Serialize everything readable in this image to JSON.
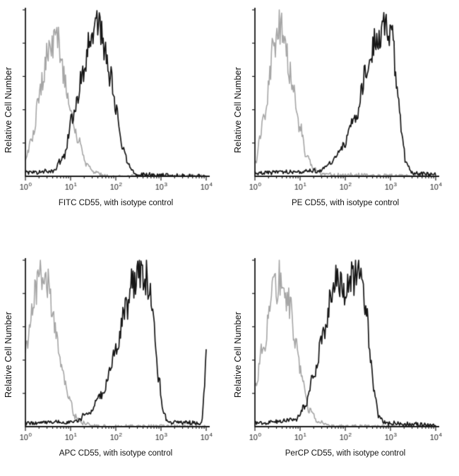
{
  "figure": {
    "background": "#ffffff",
    "axis_color": "#1a1a1a",
    "tick_label_base": "10",
    "x_tick_exponents": [
      0,
      1,
      2,
      3,
      4
    ],
    "points_format": "[log10(x), relative_cell_count 0..1]"
  },
  "chart_data": [
    {
      "type": "line",
      "subtype": "flow-cytometry-histogram",
      "xlabel": "FITC CD55, with isotype control",
      "ylabel": "Relative Cell Number",
      "x_scale": "log10",
      "xlim": [
        1,
        10000
      ],
      "grid": false,
      "legend": "none",
      "series": [
        {
          "name": "isotype control",
          "color": "#a6a6a6",
          "line_width": 1.6,
          "noise": 0.14,
          "seed": 101,
          "points": [
            [
              0,
              0.1
            ],
            [
              0.15,
              0.25
            ],
            [
              0.35,
              0.55
            ],
            [
              0.55,
              0.8
            ],
            [
              0.7,
              0.84
            ],
            [
              0.85,
              0.62
            ],
            [
              1.0,
              0.4
            ],
            [
              1.15,
              0.22
            ],
            [
              1.35,
              0.08
            ],
            [
              1.55,
              0.02
            ],
            [
              1.8,
              0.0
            ],
            [
              4,
              0.0
            ]
          ]
        },
        {
          "name": "FITC CD55",
          "color": "#161616",
          "line_width": 1.7,
          "noise": 0.13,
          "seed": 102,
          "points": [
            [
              0,
              0.02
            ],
            [
              0.6,
              0.03
            ],
            [
              0.85,
              0.12
            ],
            [
              1.05,
              0.35
            ],
            [
              1.25,
              0.6
            ],
            [
              1.45,
              0.85
            ],
            [
              1.6,
              0.93
            ],
            [
              1.75,
              0.8
            ],
            [
              1.9,
              0.6
            ],
            [
              2.0,
              0.4
            ],
            [
              2.15,
              0.18
            ],
            [
              2.3,
              0.06
            ],
            [
              2.45,
              0.01
            ],
            [
              4,
              0.0
            ]
          ]
        }
      ]
    },
    {
      "type": "line",
      "subtype": "flow-cytometry-histogram",
      "xlabel": "PE CD55, with isotype control",
      "ylabel": "Relative Cell Number",
      "x_scale": "log10",
      "xlim": [
        1,
        10000
      ],
      "grid": false,
      "legend": "none",
      "series": [
        {
          "name": "isotype control",
          "color": "#a6a6a6",
          "line_width": 1.6,
          "noise": 0.14,
          "seed": 201,
          "points": [
            [
              0,
              0.08
            ],
            [
              0.2,
              0.35
            ],
            [
              0.4,
              0.75
            ],
            [
              0.55,
              0.92
            ],
            [
              0.7,
              0.75
            ],
            [
              0.85,
              0.5
            ],
            [
              1.0,
              0.28
            ],
            [
              1.15,
              0.12
            ],
            [
              1.3,
              0.04
            ],
            [
              1.5,
              0.01
            ],
            [
              4,
              0.0
            ]
          ]
        },
        {
          "name": "PE CD55",
          "color": "#161616",
          "line_width": 1.7,
          "noise": 0.13,
          "seed": 202,
          "points": [
            [
              0,
              0.02
            ],
            [
              1.4,
              0.03
            ],
            [
              1.7,
              0.08
            ],
            [
              1.95,
              0.18
            ],
            [
              2.2,
              0.35
            ],
            [
              2.45,
              0.6
            ],
            [
              2.7,
              0.85
            ],
            [
              2.9,
              0.92
            ],
            [
              3.05,
              0.8
            ],
            [
              3.15,
              0.55
            ],
            [
              3.25,
              0.25
            ],
            [
              3.35,
              0.07
            ],
            [
              3.5,
              0.02
            ],
            [
              4,
              0.01
            ]
          ]
        }
      ]
    },
    {
      "type": "line",
      "subtype": "flow-cytometry-histogram",
      "xlabel": "APC CD55, with isotype control",
      "ylabel": "Relative Cell Number",
      "x_scale": "log10",
      "xlim": [
        1,
        10000
      ],
      "grid": false,
      "legend": "none",
      "series": [
        {
          "name": "isotype control",
          "color": "#a6a6a6",
          "line_width": 1.6,
          "noise": 0.14,
          "seed": 301,
          "points": [
            [
              0,
              0.45
            ],
            [
              0.15,
              0.75
            ],
            [
              0.35,
              0.95
            ],
            [
              0.5,
              0.88
            ],
            [
              0.65,
              0.62
            ],
            [
              0.8,
              0.38
            ],
            [
              0.95,
              0.18
            ],
            [
              1.1,
              0.06
            ],
            [
              1.3,
              0.02
            ],
            [
              1.6,
              0.0
            ],
            [
              4,
              0.0
            ]
          ]
        },
        {
          "name": "APC CD55",
          "color": "#161616",
          "line_width": 1.7,
          "noise": 0.13,
          "seed": 302,
          "points": [
            [
              0,
              0.02
            ],
            [
              1.1,
              0.03
            ],
            [
              1.4,
              0.08
            ],
            [
              1.7,
              0.2
            ],
            [
              2.0,
              0.45
            ],
            [
              2.2,
              0.68
            ],
            [
              2.4,
              0.88
            ],
            [
              2.55,
              0.95
            ],
            [
              2.7,
              0.88
            ],
            [
              2.85,
              0.6
            ],
            [
              2.95,
              0.3
            ],
            [
              3.05,
              0.1
            ],
            [
              3.15,
              0.03
            ],
            [
              3.9,
              0.02
            ],
            [
              3.96,
              0.2
            ],
            [
              4,
              0.45
            ]
          ]
        }
      ]
    },
    {
      "type": "line",
      "subtype": "flow-cytometry-histogram",
      "xlabel": "PerCP CD55, with isotype control",
      "ylabel": "Relative Cell Number",
      "x_scale": "log10",
      "xlim": [
        1,
        10000
      ],
      "grid": false,
      "legend": "none",
      "series": [
        {
          "name": "isotype control",
          "color": "#a6a6a6",
          "line_width": 1.6,
          "noise": 0.14,
          "seed": 401,
          "points": [
            [
              0,
              0.25
            ],
            [
              0.2,
              0.5
            ],
            [
              0.4,
              0.8
            ],
            [
              0.6,
              0.93
            ],
            [
              0.75,
              0.75
            ],
            [
              0.9,
              0.5
            ],
            [
              1.05,
              0.28
            ],
            [
              1.2,
              0.1
            ],
            [
              1.4,
              0.03
            ],
            [
              1.7,
              0.0
            ],
            [
              4,
              0.0
            ]
          ]
        },
        {
          "name": "PerCP CD55",
          "color": "#161616",
          "line_width": 1.7,
          "noise": 0.13,
          "seed": 402,
          "points": [
            [
              0,
              0.02
            ],
            [
              0.9,
              0.04
            ],
            [
              1.1,
              0.12
            ],
            [
              1.3,
              0.3
            ],
            [
              1.5,
              0.55
            ],
            [
              1.7,
              0.8
            ],
            [
              1.85,
              0.9
            ],
            [
              2.0,
              0.78
            ],
            [
              2.15,
              0.88
            ],
            [
              2.3,
              0.92
            ],
            [
              2.45,
              0.72
            ],
            [
              2.55,
              0.45
            ],
            [
              2.65,
              0.2
            ],
            [
              2.75,
              0.06
            ],
            [
              2.9,
              0.02
            ],
            [
              4,
              0.01
            ]
          ]
        }
      ]
    }
  ]
}
